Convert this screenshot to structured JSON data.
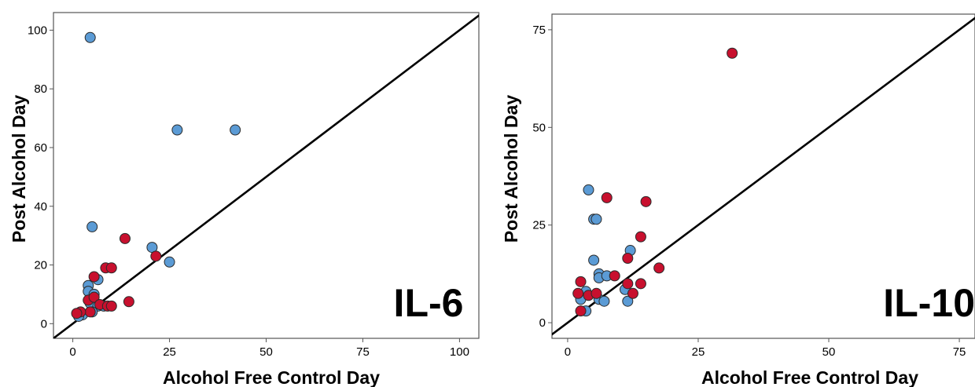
{
  "chart_data": [
    {
      "type": "scatter",
      "xlabel": "Alcohol Free Control Day",
      "ylabel": "Post Alcohol Day",
      "annotation": "IL-6",
      "xlim": [
        -5,
        105
      ],
      "ylim": [
        -5,
        106
      ],
      "xticks": [
        0,
        25,
        50,
        75,
        100
      ],
      "yticks": [
        0,
        20,
        40,
        60,
        80,
        100
      ],
      "grid": false,
      "reference_line": "y = x",
      "series": [
        {
          "color": "#5b9bd5",
          "points": [
            [
              4.5,
              97.5
            ],
            [
              27,
              66
            ],
            [
              42,
              66
            ],
            [
              5,
              33
            ],
            [
              20.5,
              26
            ],
            [
              25,
              21
            ],
            [
              4,
              13
            ],
            [
              6.5,
              15
            ],
            [
              4,
              11
            ],
            [
              5.5,
              10
            ],
            [
              5,
              8
            ],
            [
              4.5,
              7
            ],
            [
              6.5,
              6
            ],
            [
              8,
              6
            ],
            [
              5,
              4
            ],
            [
              2.5,
              3
            ],
            [
              1.5,
              2.5
            ]
          ]
        },
        {
          "color": "#c8102e",
          "points": [
            [
              13.5,
              29
            ],
            [
              21.5,
              23
            ],
            [
              8.5,
              19
            ],
            [
              10,
              19
            ],
            [
              5.5,
              16
            ],
            [
              14.5,
              7.5
            ],
            [
              4,
              8
            ],
            [
              5.5,
              9
            ],
            [
              7,
              6.5
            ],
            [
              9,
              6
            ],
            [
              10,
              6
            ],
            [
              4.5,
              4
            ],
            [
              2,
              4
            ],
            [
              1,
              3.5
            ]
          ]
        }
      ]
    },
    {
      "type": "scatter",
      "xlabel": "Alcohol Free Control Day",
      "ylabel": "Post Alcohol Day",
      "annotation": "IL-10",
      "xlim": [
        -3,
        78
      ],
      "ylim": [
        -4,
        79
      ],
      "xticks": [
        0,
        25,
        50,
        75
      ],
      "yticks": [
        0,
        25,
        50,
        75
      ],
      "grid": false,
      "reference_line": "y = x",
      "series": [
        {
          "color": "#5b9bd5",
          "points": [
            [
              4,
              34
            ],
            [
              5,
              26.5
            ],
            [
              5.5,
              26.5
            ],
            [
              12,
              18.5
            ],
            [
              5,
              16
            ],
            [
              6,
              12.5
            ],
            [
              6,
              11.5
            ],
            [
              7.5,
              12
            ],
            [
              11,
              8.5
            ],
            [
              2.5,
              7
            ],
            [
              3.5,
              8
            ],
            [
              2.5,
              6
            ],
            [
              6,
              6
            ],
            [
              7,
              5.5
            ],
            [
              11.5,
              5.5
            ],
            [
              3.5,
              3
            ]
          ]
        },
        {
          "color": "#c8102e",
          "points": [
            [
              31.5,
              69
            ],
            [
              7.5,
              32
            ],
            [
              15,
              31
            ],
            [
              14,
              22
            ],
            [
              11.5,
              16.5
            ],
            [
              9,
              12
            ],
            [
              11.5,
              10
            ],
            [
              14,
              10
            ],
            [
              17.5,
              14
            ],
            [
              2.5,
              10.5
            ],
            [
              2,
              7.5
            ],
            [
              4,
              7
            ],
            [
              5.5,
              7.5
            ],
            [
              12.5,
              7.5
            ],
            [
              2.5,
              3
            ]
          ]
        }
      ]
    }
  ]
}
